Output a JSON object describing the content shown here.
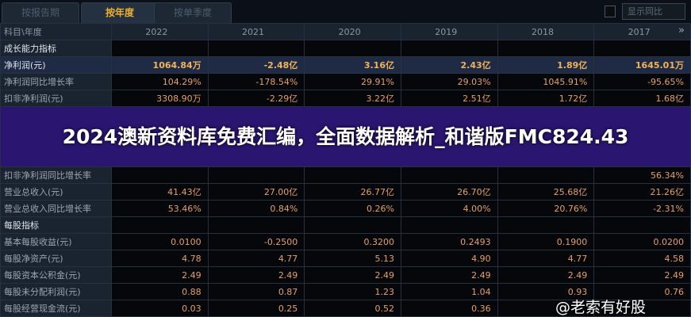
{
  "tabs": [
    {
      "label": "按报告期"
    },
    {
      "label": "按年度"
    },
    {
      "label": "按单季度"
    }
  ],
  "show_yoy": {
    "label": "显示同比",
    "checked": false
  },
  "more_icon": "»",
  "columns": [
    "科目\\年度",
    "2022",
    "2021",
    "2020",
    "2019",
    "2018",
    "2017"
  ],
  "rows": [
    {
      "type": "section",
      "label": "成长能力指标",
      "values": [
        "",
        "",
        "",
        "",
        "",
        ""
      ]
    },
    {
      "type": "highlight",
      "label": "净利润(元)",
      "values": [
        "1064.84万",
        "-2.48亿",
        "3.16亿",
        "2.43亿",
        "1.89亿",
        "1645.01万"
      ]
    },
    {
      "type": "data",
      "label": "净利润同比增长率",
      "values": [
        "104.29%",
        "-178.54%",
        "29.91%",
        "29.03%",
        "1045.91%",
        "-95.65%"
      ]
    },
    {
      "type": "data",
      "label": "扣非净利润(元)",
      "values": [
        "3308.90万",
        "-2.29亿",
        "3.22亿",
        "2.51亿",
        "1.72亿",
        "1.68亿"
      ]
    },
    {
      "type": "data",
      "label": "扣非净利润同比增长率",
      "values": [
        "",
        "",
        "",
        "",
        "",
        "56.34%"
      ]
    },
    {
      "type": "data",
      "label": "营业总收入(元)",
      "values": [
        "41.43亿",
        "27.00亿",
        "26.77亿",
        "26.70亿",
        "25.68亿",
        "21.26亿"
      ]
    },
    {
      "type": "data",
      "label": "营业总收入同比增长率",
      "values": [
        "53.46%",
        "0.84%",
        "0.26%",
        "4.00%",
        "20.76%",
        "-2.31%"
      ]
    },
    {
      "type": "section",
      "label": "每股指标",
      "values": [
        "",
        "",
        "",
        "",
        "",
        ""
      ]
    },
    {
      "type": "data",
      "label": "基本每股收益(元)",
      "values": [
        "0.0100",
        "-0.2500",
        "0.3200",
        "0.2493",
        "0.1900",
        "0.0200"
      ]
    },
    {
      "type": "data",
      "label": "每股净资产(元)",
      "values": [
        "4.78",
        "4.77",
        "5.13",
        "4.90",
        "4.77",
        "4.58"
      ]
    },
    {
      "type": "data",
      "label": "每股资本公积金(元)",
      "values": [
        "2.49",
        "2.49",
        "2.49",
        "2.49",
        "2.49",
        "2.49"
      ]
    },
    {
      "type": "data",
      "label": "每股未分配利润(元)",
      "values": [
        "0.88",
        "0.87",
        "1.23",
        "1.04",
        "0.93",
        "0.76"
      ]
    },
    {
      "type": "data",
      "label": "每股经营现金流(元)",
      "values": [
        "0.03",
        "0.25",
        "0.52",
        "0.36",
        "",
        ""
      ]
    }
  ],
  "overlay_title": "2024澳新资料库免费汇编，全面数据解析_和谐版FMC824.43",
  "watermark": "@老索有好股"
}
